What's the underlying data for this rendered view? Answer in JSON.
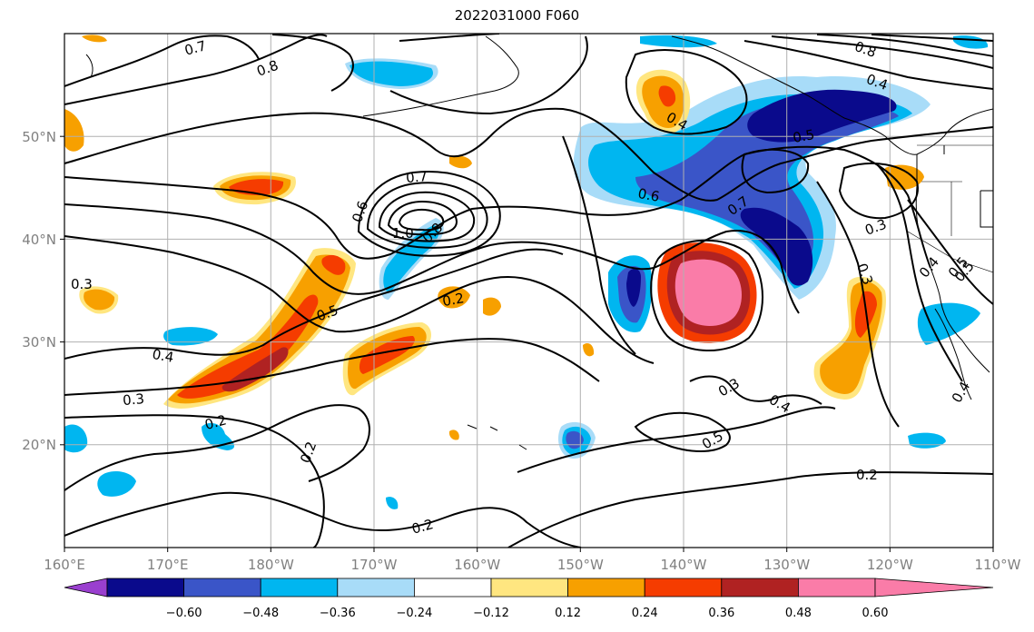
{
  "title": "2022031000 F060",
  "axes": {
    "x_ticks": [
      "160°E",
      "170°E",
      "180°W",
      "170°W",
      "160°W",
      "150°W",
      "140°W",
      "130°W",
      "120°W",
      "110°W"
    ],
    "y_ticks": [
      "20°N",
      "30°N",
      "40°N",
      "50°N"
    ]
  },
  "colorbar": {
    "labels": [
      "−0.60",
      "−0.48",
      "−0.36",
      "−0.24",
      "−0.12",
      "0.12",
      "0.24",
      "0.36",
      "0.48",
      "0.60"
    ],
    "colors": [
      "#9a3fcf",
      "#0a0a8c",
      "#3a55c8",
      "#00b6f0",
      "#a8dcf8",
      "#ffffff",
      "#ffe680",
      "#f7a000",
      "#f53c00",
      "#b02222",
      "#fa7ca8"
    ]
  },
  "contour_labels": [
    "0.7",
    "0.8",
    "0.8",
    "0.4",
    "0.4",
    "0.5",
    "0.6",
    "0.7",
    "0.7",
    "0.6",
    "1.0",
    "0.8",
    "0.3",
    "0.5",
    "0.5",
    "0.2",
    "0.4",
    "0.3",
    "0.3",
    "0.2",
    "0.2",
    "0.3",
    "0.4",
    "0.5",
    "0.2",
    "0.2",
    "0.4",
    "0.3",
    "0.4",
    "0.5"
  ]
}
